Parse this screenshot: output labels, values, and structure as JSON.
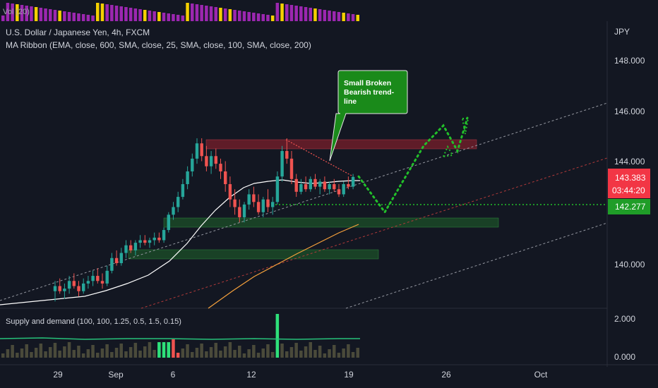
{
  "header": {
    "vol_label": "Vol (20)",
    "symbol_line": "U.S. Dollar / Japanese Yen, 4h, FXCM",
    "indicator_line": "MA Ribbon (EMA, close, 600, SMA, close, 25, SMA, close, 100, SMA, close, 200)"
  },
  "price_axis": {
    "currency": "JPY",
    "ticks": [
      "148.000",
      "146.000",
      "144.000",
      "140.000"
    ],
    "current_price": "143.383",
    "countdown": "03:44:20",
    "level_price": "142.277"
  },
  "annotation": {
    "callout_text": [
      "Small Broken",
      "Bearish trend-",
      "line"
    ]
  },
  "indicator_panel": {
    "title": "Supply and demand (100, 100, 1.25, 0.5, 1.5, 0.15)",
    "ticks": [
      "2.000",
      "0.000"
    ]
  },
  "time_axis": {
    "ticks": [
      "29",
      "Sep",
      "6",
      "12",
      "19",
      "26",
      "Oct"
    ]
  },
  "colors": {
    "background": "#131722",
    "up_candle": "#26a69a",
    "down_candle": "#ef5350",
    "ma_white": "#ffffff",
    "ma_orange": "#f6a13c",
    "green_zone": "#1e5e2a",
    "red_zone": "#7a1f2b",
    "projection": "#22c02a",
    "callout": "#1a8a1a",
    "current_price_bg": "#f23645",
    "level_bg": "#1f9d28",
    "volume_bar": "#9c27b0",
    "volume_bar_alt": "#f5d000"
  },
  "chart_data": {
    "type": "candlestick",
    "symbol": "U.S. Dollar / Japanese Yen",
    "interval": "4h",
    "x": [
      "29",
      "Sep",
      "6",
      "12",
      "19",
      "26",
      "Oct"
    ],
    "y_ticks": [
      148,
      146,
      144,
      140
    ],
    "current_price": 143.383,
    "marked_level": 142.277,
    "ohlc": [
      [
        138.9,
        139.3,
        138.5,
        139.1
      ],
      [
        139.1,
        139.4,
        138.8,
        138.9
      ],
      [
        138.9,
        139.2,
        138.6,
        139.0
      ],
      [
        139.0,
        139.5,
        138.8,
        139.3
      ],
      [
        139.3,
        139.6,
        139.0,
        139.1
      ],
      [
        139.1,
        139.3,
        138.7,
        138.9
      ],
      [
        138.9,
        139.4,
        138.8,
        139.2
      ],
      [
        139.2,
        139.5,
        139.0,
        139.3
      ],
      [
        139.3,
        139.7,
        139.1,
        139.5
      ],
      [
        139.5,
        139.8,
        139.2,
        139.3
      ],
      [
        139.3,
        139.6,
        139.0,
        139.2
      ],
      [
        139.2,
        139.9,
        139.1,
        139.7
      ],
      [
        139.7,
        140.4,
        139.6,
        140.2
      ],
      [
        140.2,
        140.5,
        139.9,
        140.0
      ],
      [
        140.0,
        140.6,
        139.9,
        140.4
      ],
      [
        140.4,
        140.9,
        140.2,
        140.7
      ],
      [
        140.7,
        140.9,
        140.4,
        140.5
      ],
      [
        140.5,
        140.9,
        140.3,
        140.8
      ],
      [
        140.8,
        141.1,
        140.6,
        140.9
      ],
      [
        140.9,
        141.1,
        140.7,
        140.8
      ],
      [
        140.8,
        141.0,
        140.6,
        140.9
      ],
      [
        140.9,
        141.2,
        140.7,
        141.0
      ],
      [
        141.0,
        141.2,
        140.8,
        140.9
      ],
      [
        140.9,
        141.4,
        140.8,
        141.3
      ],
      [
        141.3,
        142.0,
        141.2,
        141.9
      ],
      [
        141.9,
        142.4,
        141.7,
        142.2
      ],
      [
        142.2,
        142.8,
        142.0,
        142.6
      ],
      [
        142.6,
        143.3,
        142.5,
        143.1
      ],
      [
        143.1,
        143.8,
        142.9,
        143.6
      ],
      [
        143.6,
        144.3,
        143.4,
        144.1
      ],
      [
        144.1,
        144.9,
        143.9,
        144.7
      ],
      [
        144.7,
        144.9,
        144.0,
        144.2
      ],
      [
        144.2,
        144.6,
        143.6,
        143.8
      ],
      [
        143.8,
        144.4,
        143.5,
        144.2
      ],
      [
        144.2,
        144.5,
        143.7,
        143.9
      ],
      [
        143.9,
        144.1,
        143.3,
        143.6
      ],
      [
        143.6,
        144.0,
        142.8,
        143.1
      ],
      [
        143.1,
        143.4,
        142.2,
        142.5
      ],
      [
        142.5,
        142.9,
        141.9,
        142.2
      ],
      [
        142.2,
        142.5,
        141.6,
        141.8
      ],
      [
        141.8,
        142.4,
        141.6,
        142.3
      ],
      [
        142.3,
        142.9,
        142.1,
        142.7
      ],
      [
        142.7,
        143.0,
        142.2,
        142.4
      ],
      [
        142.4,
        142.7,
        141.9,
        142.0
      ],
      [
        142.0,
        142.6,
        141.8,
        142.5
      ],
      [
        142.5,
        142.9,
        142.0,
        142.2
      ],
      [
        142.2,
        142.6,
        141.9,
        142.4
      ],
      [
        142.4,
        143.6,
        142.3,
        143.4
      ],
      [
        143.4,
        144.6,
        143.2,
        144.4
      ],
      [
        144.4,
        144.9,
        143.9,
        144.1
      ],
      [
        144.1,
        144.4,
        143.1,
        143.3
      ],
      [
        143.3,
        143.5,
        142.6,
        142.8
      ],
      [
        142.8,
        143.3,
        142.7,
        143.1
      ],
      [
        143.1,
        143.4,
        142.8,
        142.9
      ],
      [
        142.9,
        143.4,
        142.8,
        143.3
      ],
      [
        143.3,
        143.5,
        142.9,
        143.0
      ],
      [
        143.0,
        143.3,
        142.7,
        143.2
      ],
      [
        143.2,
        143.4,
        142.8,
        142.9
      ],
      [
        142.9,
        143.2,
        142.7,
        143.1
      ],
      [
        143.1,
        143.3,
        142.8,
        142.9
      ],
      [
        142.9,
        143.1,
        142.6,
        142.7
      ],
      [
        142.7,
        143.2,
        142.6,
        143.1
      ],
      [
        143.1,
        143.4,
        142.9,
        143.0
      ],
      [
        143.0,
        143.5,
        142.9,
        143.383
      ]
    ],
    "zones": [
      {
        "type": "supply",
        "from": 144.4,
        "to": 144.75
      },
      {
        "type": "demand",
        "from": 141.3,
        "to": 141.65
      },
      {
        "type": "demand",
        "from": 140.2,
        "to": 140.55
      }
    ],
    "projection": [
      143.4,
      142.0,
      144.6,
      145.4,
      144.4,
      145.7
    ]
  }
}
